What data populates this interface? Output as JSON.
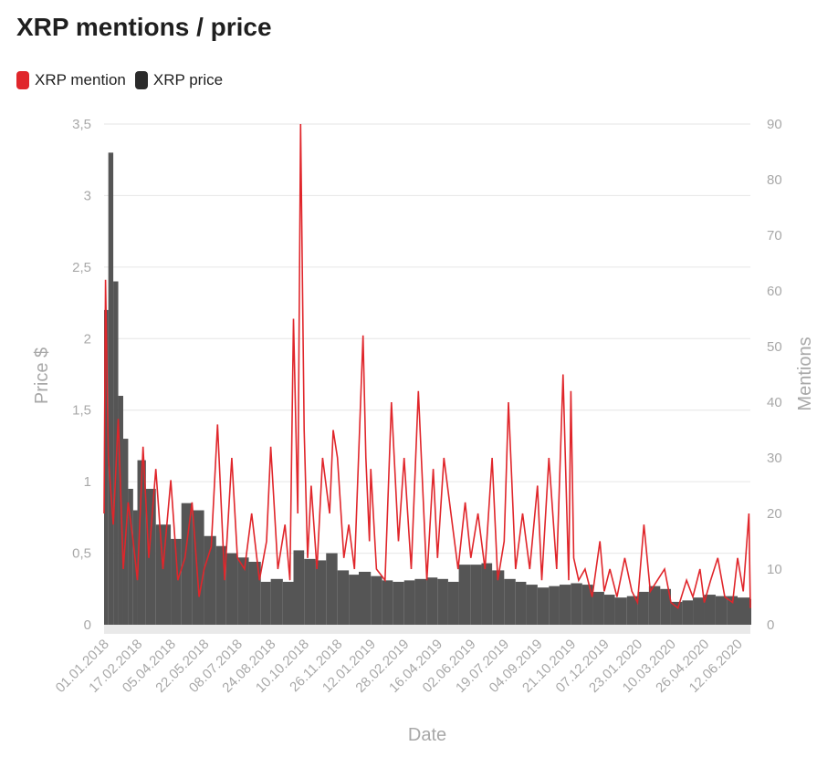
{
  "header": {
    "title": "XRP mentions / price"
  },
  "legend": [
    {
      "label": "XRP mention",
      "color": "#e0262b"
    },
    {
      "label": "XRP price",
      "color": "#2b2b2b"
    }
  ],
  "chart_data": {
    "type": "bar+line",
    "title": "XRP mentions / price",
    "xlabel": "Date",
    "ylabel": "Price $",
    "y2label": "Mentions",
    "ylim": [
      0,
      3.5
    ],
    "y2lim": [
      0,
      90
    ],
    "y_ticks": [
      "0",
      "0,5",
      "1",
      "1,5",
      "2",
      "2,5",
      "3",
      "3,5"
    ],
    "y_tick_values": [
      0,
      0.5,
      1,
      1.5,
      2,
      2.5,
      3,
      3.5
    ],
    "y2_ticks": [
      "0",
      "10",
      "20",
      "30",
      "40",
      "50",
      "60",
      "70",
      "80",
      "90"
    ],
    "y2_tick_values": [
      0,
      10,
      20,
      30,
      40,
      50,
      60,
      70,
      80,
      90
    ],
    "x_ticks": [
      "01.01.2018",
      "17.02.2018",
      "05.04.2018",
      "22.05.2018",
      "08.07.2018",
      "24.08.2018",
      "10.10.2018",
      "26.11.2018",
      "12.01.2019",
      "28.02.2019",
      "16.04.2019",
      "02.06.2019",
      "19.07.2019",
      "04.09.2019",
      "21.10.2019",
      "07.12.2019",
      "23.01.2020",
      "10.03.2020",
      "26.04.2020",
      "12.06.2020"
    ],
    "grid": true,
    "series": [
      {
        "name": "XRP price",
        "type": "bar",
        "color": "#555555",
        "x": [
          "01.01.2018",
          "07.01.2018",
          "14.01.2018",
          "21.01.2018",
          "28.01.2018",
          "04.02.2018",
          "11.02.2018",
          "17.02.2018",
          "01.03.2018",
          "15.03.2018",
          "05.04.2018",
          "20.04.2018",
          "05.05.2018",
          "22.05.2018",
          "08.06.2018",
          "22.06.2018",
          "08.07.2018",
          "24.07.2018",
          "10.08.2018",
          "24.08.2018",
          "10.09.2018",
          "25.09.2018",
          "10.10.2018",
          "26.10.2018",
          "10.11.2018",
          "26.11.2018",
          "12.12.2018",
          "26.12.2018",
          "12.01.2019",
          "28.01.2019",
          "12.02.2019",
          "28.02.2019",
          "15.03.2019",
          "01.04.2019",
          "16.04.2019",
          "01.05.2019",
          "16.05.2019",
          "02.06.2019",
          "17.06.2019",
          "02.07.2019",
          "19.07.2019",
          "04.08.2019",
          "19.08.2019",
          "04.09.2019",
          "20.09.2019",
          "05.10.2019",
          "21.10.2019",
          "06.11.2019",
          "21.11.2019",
          "07.12.2019",
          "22.12.2019",
          "08.01.2020",
          "23.01.2020",
          "08.02.2020",
          "24.02.2020",
          "10.03.2020",
          "26.03.2020",
          "10.04.2020",
          "26.04.2020",
          "12.05.2020",
          "28.05.2020",
          "12.06.2020",
          "30.06.2020"
        ],
        "values": [
          2.2,
          3.3,
          2.4,
          1.6,
          1.3,
          0.95,
          0.8,
          1.15,
          0.95,
          0.7,
          0.6,
          0.85,
          0.8,
          0.62,
          0.55,
          0.5,
          0.47,
          0.44,
          0.3,
          0.32,
          0.3,
          0.52,
          0.46,
          0.45,
          0.5,
          0.38,
          0.35,
          0.37,
          0.34,
          0.31,
          0.3,
          0.31,
          0.32,
          0.33,
          0.32,
          0.3,
          0.42,
          0.42,
          0.43,
          0.38,
          0.32,
          0.3,
          0.28,
          0.26,
          0.27,
          0.28,
          0.29,
          0.28,
          0.23,
          0.21,
          0.19,
          0.2,
          0.23,
          0.27,
          0.25,
          0.16,
          0.17,
          0.19,
          0.21,
          0.2,
          0.2,
          0.19,
          0.18
        ]
      },
      {
        "name": "XRP mention",
        "type": "line",
        "color": "#e0262b",
        "x": [
          "01.01.2018",
          "03.01.2018",
          "07.01.2018",
          "14.01.2018",
          "21.01.2018",
          "28.01.2018",
          "04.02.2018",
          "11.02.2018",
          "17.02.2018",
          "25.02.2018",
          "05.03.2018",
          "15.03.2018",
          "25.03.2018",
          "05.04.2018",
          "15.04.2018",
          "25.04.2018",
          "05.05.2018",
          "15.05.2018",
          "22.05.2018",
          "01.06.2018",
          "10.06.2018",
          "20.06.2018",
          "30.06.2018",
          "08.07.2018",
          "18.07.2018",
          "28.07.2018",
          "08.08.2018",
          "18.08.2018",
          "24.08.2018",
          "03.09.2018",
          "13.09.2018",
          "20.09.2018",
          "25.09.2018",
          "01.10.2018",
          "05.10.2018",
          "10.10.2018",
          "15.10.2018",
          "20.10.2018",
          "28.10.2018",
          "05.11.2018",
          "15.11.2018",
          "20.11.2018",
          "26.11.2018",
          "05.12.2018",
          "12.12.2018",
          "20.12.2018",
          "01.01.2019",
          "05.01.2019",
          "10.01.2019",
          "12.01.2019",
          "20.01.2019",
          "01.02.2019",
          "10.02.2019",
          "20.02.2019",
          "28.02.2019",
          "10.03.2019",
          "20.03.2019",
          "01.04.2019",
          "10.04.2019",
          "16.04.2019",
          "25.04.2019",
          "05.05.2019",
          "15.05.2019",
          "25.05.2019",
          "02.06.2019",
          "12.06.2019",
          "22.06.2019",
          "02.07.2019",
          "10.07.2019",
          "19.07.2019",
          "25.07.2019",
          "04.08.2019",
          "14.08.2019",
          "24.08.2019",
          "04.09.2019",
          "10.09.2019",
          "20.09.2019",
          "01.10.2019",
          "10.10.2019",
          "18.10.2019",
          "21.10.2019",
          "25.10.2019",
          "01.11.2019",
          "10.11.2019",
          "20.11.2019",
          "01.12.2019",
          "07.12.2019",
          "15.12.2019",
          "25.12.2019",
          "05.01.2020",
          "15.01.2020",
          "23.01.2020",
          "01.02.2020",
          "10.02.2020",
          "20.02.2020",
          "01.03.2020",
          "10.03.2020",
          "20.03.2020",
          "01.04.2020",
          "10.04.2020",
          "20.04.2020",
          "26.04.2020",
          "05.05.2020",
          "15.05.2020",
          "25.05.2020",
          "05.06.2020",
          "12.06.2020",
          "20.06.2020",
          "28.06.2020",
          "30.06.2020"
        ],
        "values": [
          20,
          62,
          30,
          18,
          37,
          10,
          22,
          15,
          8,
          32,
          12,
          28,
          10,
          26,
          8,
          12,
          22,
          5,
          10,
          14,
          36,
          8,
          30,
          12,
          10,
          20,
          8,
          15,
          32,
          10,
          18,
          8,
          55,
          20,
          90,
          35,
          12,
          25,
          10,
          30,
          20,
          35,
          30,
          12,
          18,
          10,
          52,
          30,
          15,
          28,
          10,
          8,
          40,
          15,
          30,
          10,
          42,
          8,
          28,
          12,
          30,
          20,
          10,
          22,
          12,
          20,
          10,
          30,
          8,
          15,
          40,
          10,
          20,
          10,
          25,
          8,
          30,
          10,
          45,
          8,
          42,
          12,
          8,
          10,
          5,
          15,
          6,
          10,
          5,
          12,
          6,
          4,
          18,
          6,
          8,
          10,
          4,
          3,
          8,
          5,
          10,
          4,
          8,
          12,
          5,
          4,
          12,
          6,
          20,
          3
        ]
      }
    ]
  }
}
